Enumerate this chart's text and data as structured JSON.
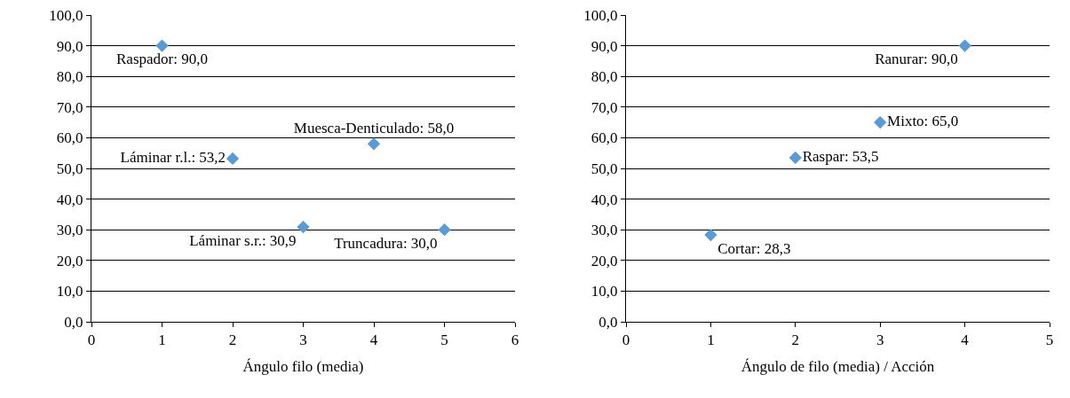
{
  "chart_data": [
    {
      "type": "scatter",
      "xlabel": "Ángulo filo (media)",
      "x": [
        1,
        2,
        3,
        4,
        5
      ],
      "values": [
        90.0,
        53.2,
        30.9,
        58.0,
        30.0
      ],
      "color": "#5b9bd5",
      "marker": "diamond",
      "value_labels": [
        "Raspador: 90,0",
        "Láminar r.l.: 53,2",
        "Láminar s.r.: 30,9",
        "Muesca-Denticulado: 58,0",
        "Truncadura: 30,0"
      ],
      "xlim": [
        0,
        6
      ],
      "xticks": [
        0,
        1,
        2,
        3,
        4,
        5,
        6
      ],
      "ylim": [
        0,
        100
      ],
      "yticks": [
        {
          "value": 0,
          "label": "0,0"
        },
        {
          "value": 10,
          "label": "10,0"
        },
        {
          "value": 20,
          "label": "20,0"
        },
        {
          "value": 30,
          "label": "30,0"
        },
        {
          "value": 40,
          "label": "40,0"
        },
        {
          "value": 50,
          "label": "50,0"
        },
        {
          "value": 60,
          "label": "60,0"
        },
        {
          "value": 70,
          "label": "70,0"
        },
        {
          "value": 80,
          "label": "80,0"
        },
        {
          "value": 90,
          "label": "90,0"
        },
        {
          "value": 100,
          "label": "100,0"
        }
      ],
      "grid": "y"
    },
    {
      "type": "scatter",
      "xlabel": "Ángulo de filo (media) / Acción",
      "x": [
        1,
        2,
        3,
        4
      ],
      "values": [
        28.3,
        53.5,
        65.0,
        90.0
      ],
      "color": "#5b9bd5",
      "marker": "diamond",
      "value_labels": [
        "Cortar: 28,3",
        "Raspar: 53,5",
        "Mixto: 65,0",
        "Ranurar: 90,0"
      ],
      "xlim": [
        0,
        5
      ],
      "xticks": [
        0,
        1,
        2,
        3,
        4,
        5
      ],
      "ylim": [
        0,
        100
      ],
      "yticks": [
        {
          "value": 0,
          "label": "0,0"
        },
        {
          "value": 10,
          "label": "10,0"
        },
        {
          "value": 20,
          "label": "20,0"
        },
        {
          "value": 30,
          "label": "30,0"
        },
        {
          "value": 40,
          "label": "40,0"
        },
        {
          "value": 50,
          "label": "50,0"
        },
        {
          "value": 60,
          "label": "60,0"
        },
        {
          "value": 70,
          "label": "70,0"
        },
        {
          "value": 80,
          "label": "80,0"
        },
        {
          "value": 90,
          "label": "90,0"
        },
        {
          "value": 100,
          "label": "100,0"
        }
      ],
      "grid": "y"
    }
  ]
}
